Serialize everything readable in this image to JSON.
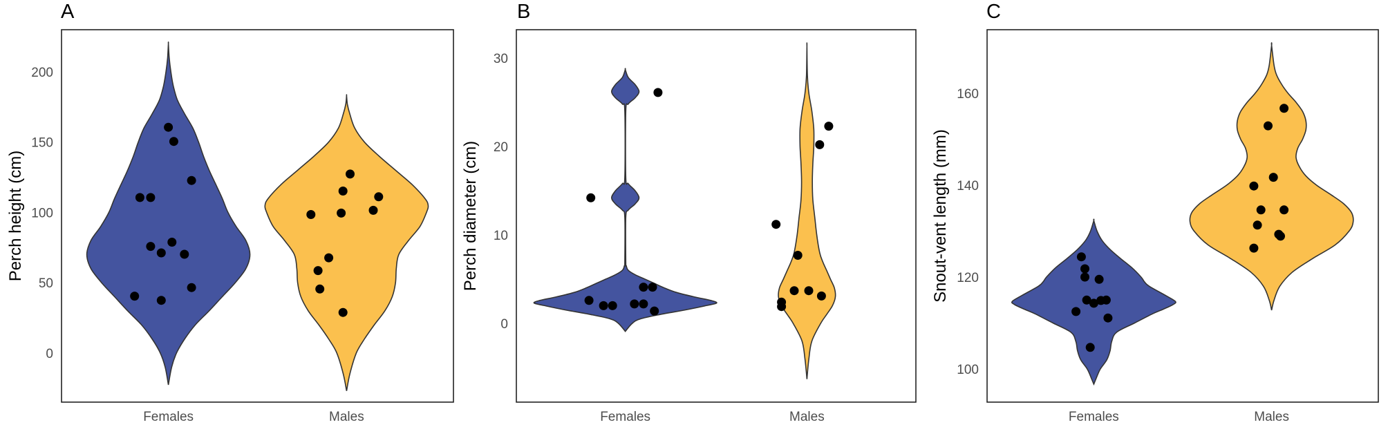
{
  "chart_data": [
    {
      "type": "violin",
      "tag": "A",
      "title": "",
      "xlabel": "",
      "ylabel": "Perch height (cm)",
      "categories": [
        "Females",
        "Males"
      ],
      "yticks": [
        0,
        50,
        100,
        150,
        200
      ],
      "ylim": [
        -35,
        230
      ],
      "grid": false,
      "colors": {
        "Females": "#44549F",
        "Males": "#FBC04E"
      },
      "series": [
        {
          "name": "Females",
          "points": [
            160.6,
            150.5,
            122.7,
            110.6,
            110.6,
            78.8,
            75.8,
            71.2,
            70.2,
            46.5,
            40.4,
            37.4
          ],
          "jitter": [
            0.0,
            0.03,
            0.13,
            -0.16,
            -0.1,
            0.02,
            -0.1,
            -0.04,
            0.09,
            0.13,
            -0.19,
            -0.04
          ],
          "density_profile": [
            [
              -22.7,
              0
            ],
            [
              -10,
              0.04
            ],
            [
              0,
              0.1
            ],
            [
              10,
              0.2
            ],
            [
              20,
              0.33
            ],
            [
              30,
              0.5
            ],
            [
              40,
              0.66
            ],
            [
              50,
              0.82
            ],
            [
              60,
              0.95
            ],
            [
              70,
              1.0
            ],
            [
              80,
              0.95
            ],
            [
              90,
              0.83
            ],
            [
              100,
              0.73
            ],
            [
              110,
              0.66
            ],
            [
              120,
              0.58
            ],
            [
              130,
              0.5
            ],
            [
              140,
              0.43
            ],
            [
              150,
              0.37
            ],
            [
              160,
              0.3
            ],
            [
              170,
              0.2
            ],
            [
              180,
              0.11
            ],
            [
              190,
              0.06
            ],
            [
              200,
              0.03
            ],
            [
              210,
              0.01
            ],
            [
              220,
              0
            ]
          ]
        },
        {
          "name": "Males",
          "points": [
            127.3,
            115.2,
            111.1,
            101.5,
            99.5,
            98.5,
            67.7,
            58.6,
            45.5,
            28.8
          ],
          "jitter": [
            0.02,
            -0.02,
            0.18,
            0.15,
            -0.03,
            -0.2,
            -0.1,
            -0.16,
            -0.15,
            -0.02
          ],
          "density_profile": [
            [
              -27,
              0
            ],
            [
              -15,
              0.04
            ],
            [
              0,
              0.12
            ],
            [
              10,
              0.22
            ],
            [
              20,
              0.34
            ],
            [
              30,
              0.47
            ],
            [
              40,
              0.56
            ],
            [
              50,
              0.6
            ],
            [
              60,
              0.61
            ],
            [
              70,
              0.64
            ],
            [
              80,
              0.76
            ],
            [
              90,
              0.9
            ],
            [
              100,
              0.98
            ],
            [
              105,
              1.0
            ],
            [
              110,
              0.96
            ],
            [
              120,
              0.8
            ],
            [
              130,
              0.6
            ],
            [
              140,
              0.4
            ],
            [
              150,
              0.22
            ],
            [
              160,
              0.1
            ],
            [
              170,
              0.04
            ],
            [
              177,
              0.01
            ],
            [
              183,
              0
            ]
          ]
        }
      ]
    },
    {
      "type": "violin",
      "tag": "B",
      "title": "",
      "xlabel": "",
      "ylabel": "Perch diameter (cm)",
      "categories": [
        "Females",
        "Males"
      ],
      "yticks": [
        0,
        10,
        20,
        30
      ],
      "ylim": [
        -8.9,
        33.2
      ],
      "grid": false,
      "colors": {
        "Females": "#44549F",
        "Males": "#FBC04E"
      },
      "series": [
        {
          "name": "Females",
          "points": [
            26.1,
            14.2,
            4.1,
            4.1,
            2.6,
            2.0,
            2.0,
            2.2,
            2.2,
            1.4
          ],
          "jitter": [
            0.18,
            -0.19,
            0.1,
            0.15,
            -0.2,
            -0.12,
            -0.07,
            0.05,
            0.1,
            0.16
          ],
          "density_profile": [
            [
              -0.9,
              0
            ],
            [
              0,
              0.07
            ],
            [
              0.5,
              0.15
            ],
            [
              1,
              0.35
            ],
            [
              1.5,
              0.6
            ],
            [
              2,
              0.82
            ],
            [
              2.3,
              0.93
            ],
            [
              2.6,
              0.87
            ],
            [
              3,
              0.7
            ],
            [
              3.5,
              0.52
            ],
            [
              4,
              0.4
            ],
            [
              4.5,
              0.3
            ],
            [
              5,
              0.2
            ],
            [
              5.5,
              0.1
            ],
            [
              6,
              0.03
            ],
            [
              6.5,
              0.01
            ],
            [
              7,
              0.005
            ],
            [
              12,
              0.005
            ],
            [
              12.8,
              0.03
            ],
            [
              13.5,
              0.1
            ],
            [
              14.2,
              0.14
            ],
            [
              15,
              0.1
            ],
            [
              15.8,
              0.03
            ],
            [
              16.5,
              0.005
            ],
            [
              24,
              0.005
            ],
            [
              24.8,
              0.03
            ],
            [
              25.5,
              0.1
            ],
            [
              26.2,
              0.14
            ],
            [
              27,
              0.1
            ],
            [
              27.8,
              0.03
            ],
            [
              28.7,
              0
            ]
          ]
        },
        {
          "name": "Males",
          "points": [
            22.3,
            20.2,
            11.2,
            7.7,
            3.7,
            3.7,
            3.1,
            2.4,
            1.9
          ],
          "jitter": [
            0.12,
            0.07,
            -0.17,
            -0.05,
            -0.07,
            0.01,
            0.08,
            -0.14,
            -0.14
          ],
          "density_profile": [
            [
              -6.3,
              0
            ],
            [
              -4,
              0.02
            ],
            [
              -2,
              0.05
            ],
            [
              0,
              0.14
            ],
            [
              1,
              0.2
            ],
            [
              2,
              0.26
            ],
            [
              3,
              0.29
            ],
            [
              4,
              0.28
            ],
            [
              5,
              0.24
            ],
            [
              6,
              0.2
            ],
            [
              7,
              0.16
            ],
            [
              8,
              0.13
            ],
            [
              10,
              0.1
            ],
            [
              12,
              0.08
            ],
            [
              14,
              0.06
            ],
            [
              16,
              0.055
            ],
            [
              18,
              0.06
            ],
            [
              20,
              0.07
            ],
            [
              22,
              0.07
            ],
            [
              24,
              0.05
            ],
            [
              26,
              0.02
            ],
            [
              28,
              0.005
            ],
            [
              31.3,
              0
            ]
          ]
        }
      ]
    },
    {
      "type": "violin",
      "tag": "C",
      "title": "",
      "xlabel": "",
      "ylabel": "Snout-vent length (mm)",
      "categories": [
        "Females",
        "Males"
      ],
      "yticks": [
        100,
        120,
        140,
        160
      ],
      "ylim": [
        92.8,
        173.8
      ],
      "grid": false,
      "colors": {
        "Females": "#44549F",
        "Males": "#FBC04E"
      },
      "series": [
        {
          "name": "Females",
          "points": [
            124.4,
            121.8,
            120.0,
            119.5,
            115.0,
            114.3,
            114.9,
            115.0,
            112.5,
            111.1,
            104.7
          ],
          "jitter": [
            -0.07,
            -0.05,
            -0.05,
            0.03,
            -0.04,
            0.0,
            0.04,
            0.07,
            -0.1,
            0.08,
            -0.02
          ],
          "density_profile": [
            [
              96.7,
              0
            ],
            [
              98,
              0.03
            ],
            [
              100,
              0.08
            ],
            [
              102,
              0.16
            ],
            [
              104,
              0.2
            ],
            [
              106,
              0.22
            ],
            [
              108,
              0.28
            ],
            [
              110,
              0.5
            ],
            [
              112,
              0.72
            ],
            [
              113,
              0.85
            ],
            [
              114,
              0.97
            ],
            [
              114.7,
              1.0
            ],
            [
              116,
              0.88
            ],
            [
              118,
              0.68
            ],
            [
              119,
              0.62
            ],
            [
              120,
              0.58
            ],
            [
              122,
              0.47
            ],
            [
              124,
              0.33
            ],
            [
              126,
              0.2
            ],
            [
              128,
              0.1
            ],
            [
              130,
              0.04
            ],
            [
              132.3,
              0
            ]
          ]
        },
        {
          "name": "Males",
          "points": [
            156.7,
            152.9,
            141.7,
            139.8,
            134.6,
            134.6,
            131.3,
            129.3,
            128.9,
            126.3
          ],
          "jitter": [
            0.07,
            -0.02,
            0.01,
            -0.1,
            -0.06,
            0.07,
            -0.08,
            0.04,
            0.05,
            -0.1
          ],
          "density_profile": [
            [
              112.8,
              0
            ],
            [
              115,
              0.03
            ],
            [
              118,
              0.1
            ],
            [
              121,
              0.25
            ],
            [
              124,
              0.5
            ],
            [
              127,
              0.78
            ],
            [
              130,
              0.95
            ],
            [
              132,
              1.0
            ],
            [
              134,
              0.98
            ],
            [
              136,
              0.88
            ],
            [
              138,
              0.72
            ],
            [
              140,
              0.55
            ],
            [
              142,
              0.42
            ],
            [
              144,
              0.34
            ],
            [
              146,
              0.3
            ],
            [
              148,
              0.32
            ],
            [
              150,
              0.38
            ],
            [
              152,
              0.42
            ],
            [
              154,
              0.42
            ],
            [
              156,
              0.38
            ],
            [
              158,
              0.3
            ],
            [
              160,
              0.2
            ],
            [
              162,
              0.12
            ],
            [
              164,
              0.06
            ],
            [
              166,
              0.03
            ],
            [
              170.4,
              0
            ]
          ]
        }
      ]
    }
  ]
}
